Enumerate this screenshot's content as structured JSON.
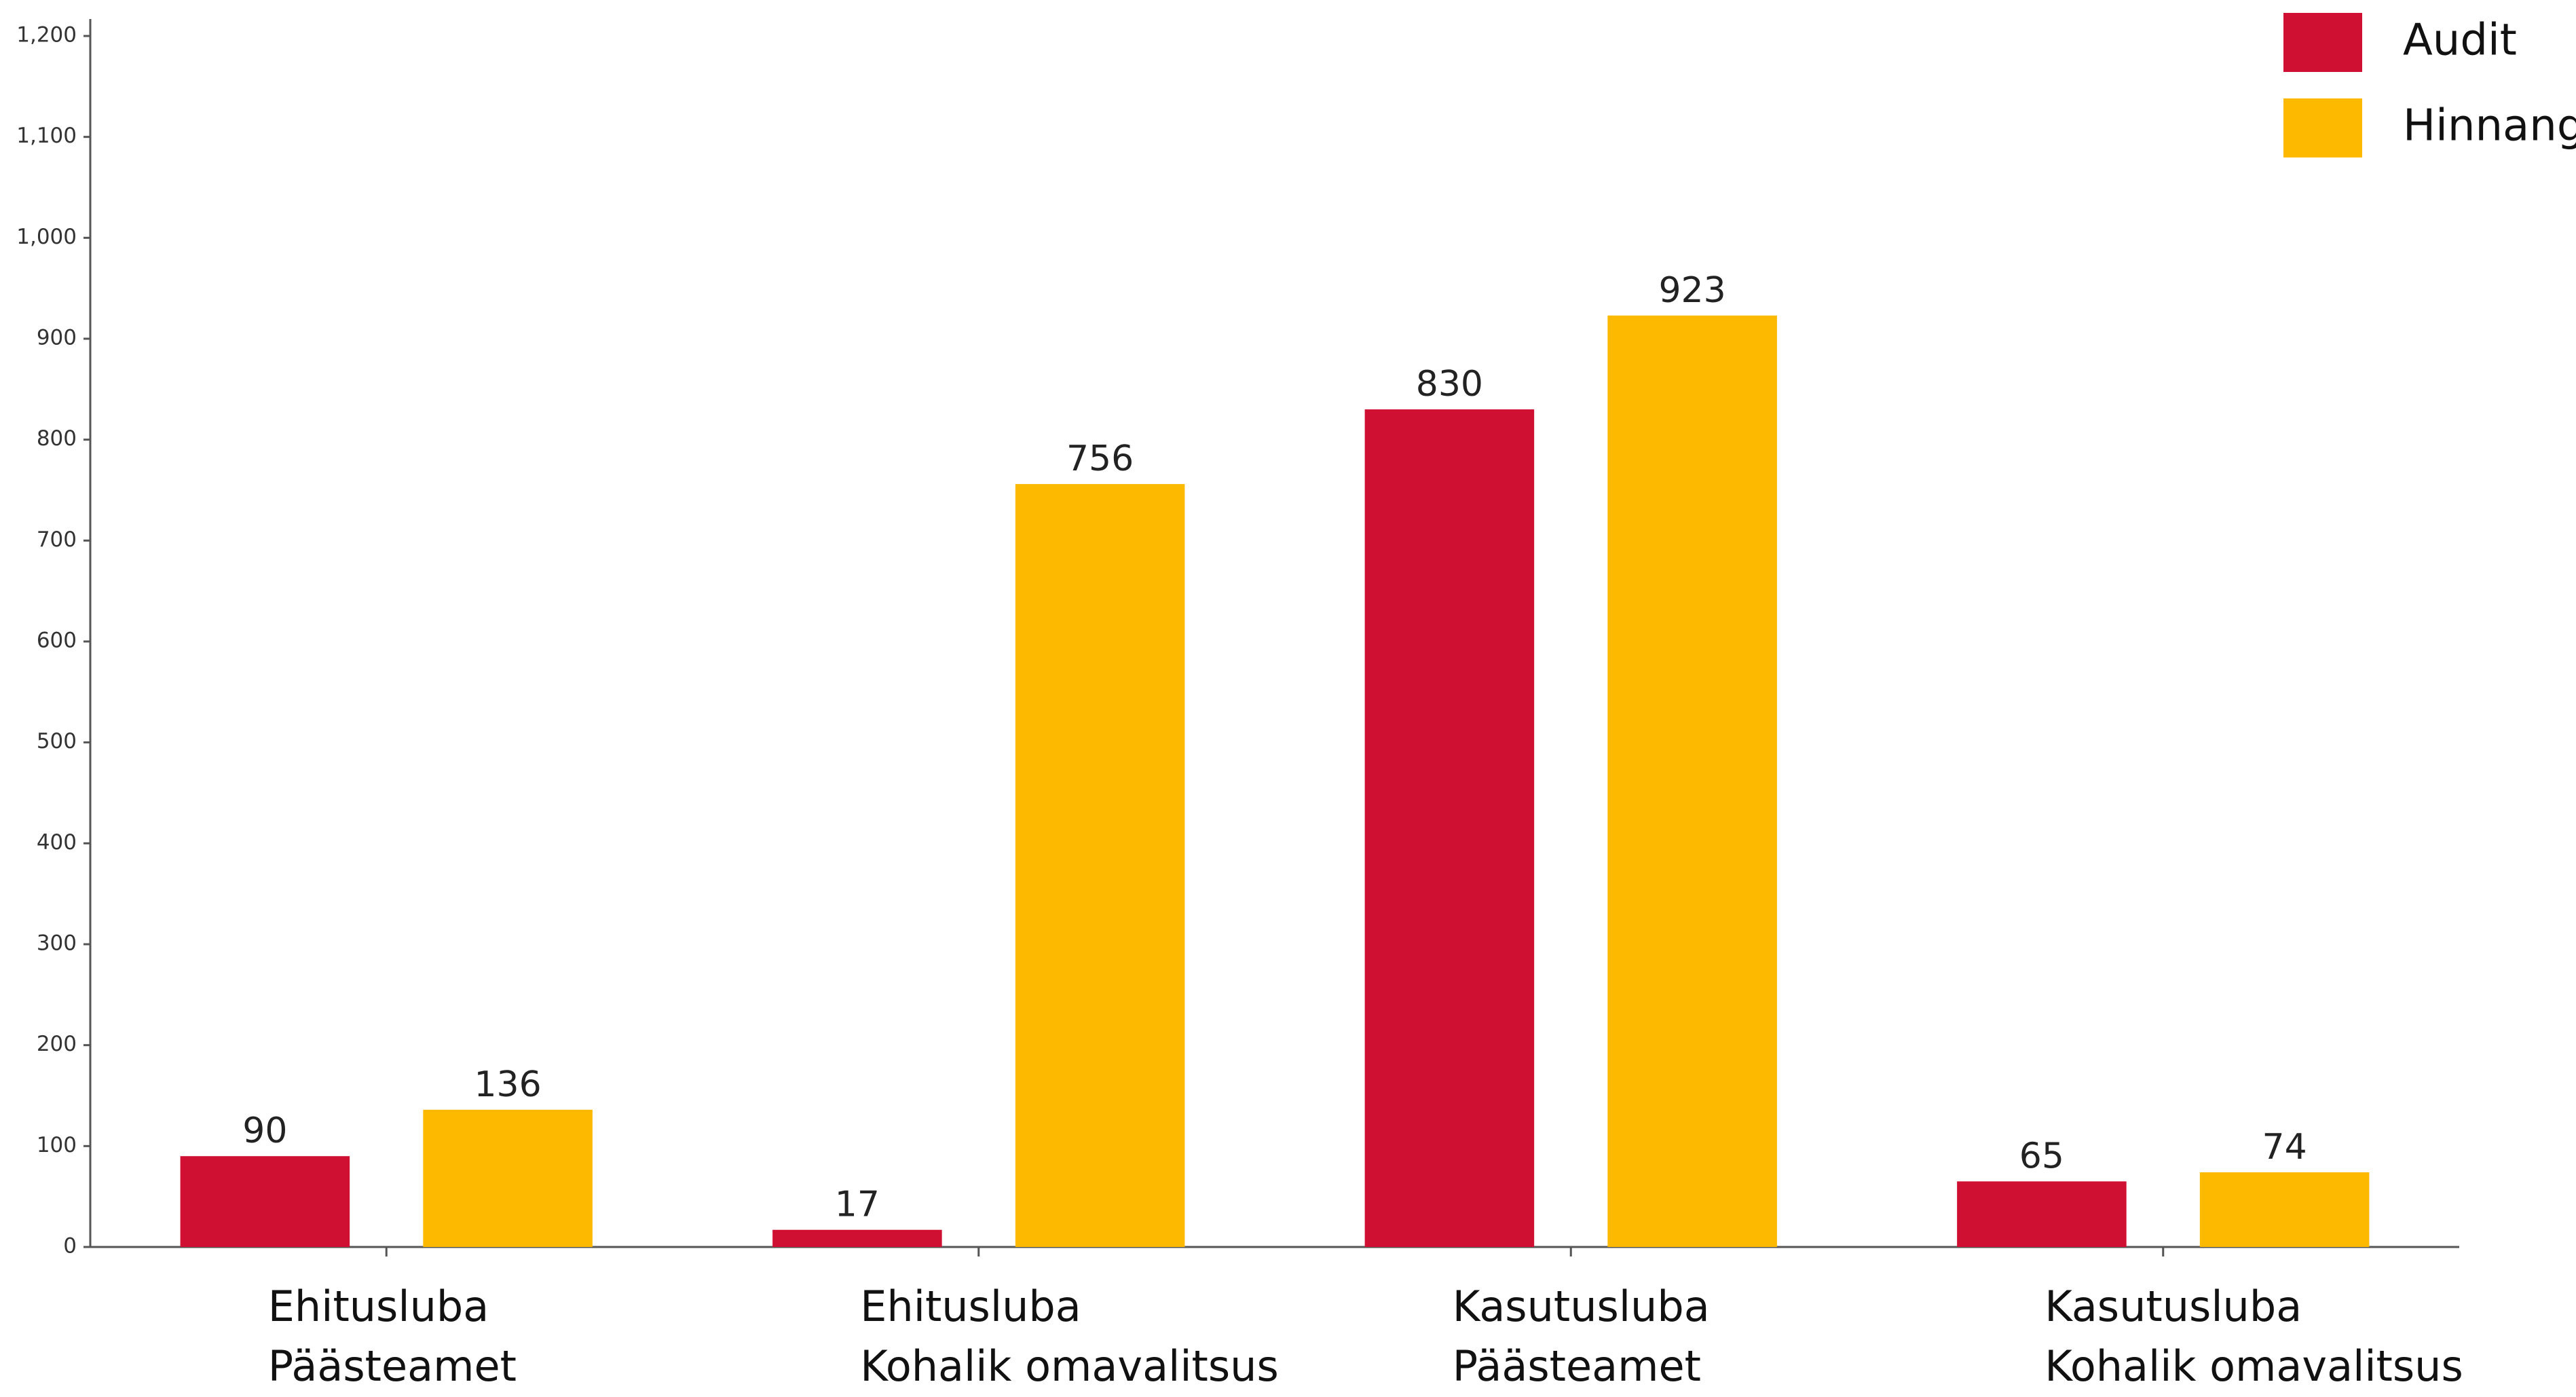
{
  "chart_data": {
    "type": "bar",
    "categories": [
      [
        "Ehitusluba",
        "Päästeamet"
      ],
      [
        "Ehitusluba",
        "Kohalik omavalitsus"
      ],
      [
        "Kasutusluba",
        "Päästeamet"
      ],
      [
        "Kasutusluba",
        "Kohalik omavalitsus"
      ]
    ],
    "series": [
      {
        "name": "Audit",
        "color": "#d01033",
        "values": [
          90,
          17,
          830,
          65
        ]
      },
      {
        "name": "Hinnang",
        "color": "#fdb900",
        "values": [
          136,
          756,
          923,
          74
        ]
      }
    ],
    "ylim": [
      0,
      1200
    ],
    "yticks": [
      0,
      100,
      200,
      300,
      400,
      500,
      600,
      700,
      800,
      900,
      {
        "value": 1000,
        "label": "1,000"
      },
      {
        "value": 1100,
        "label": "1,100"
      },
      {
        "value": 1200,
        "label": "1,200"
      }
    ],
    "legend": "top-right"
  }
}
